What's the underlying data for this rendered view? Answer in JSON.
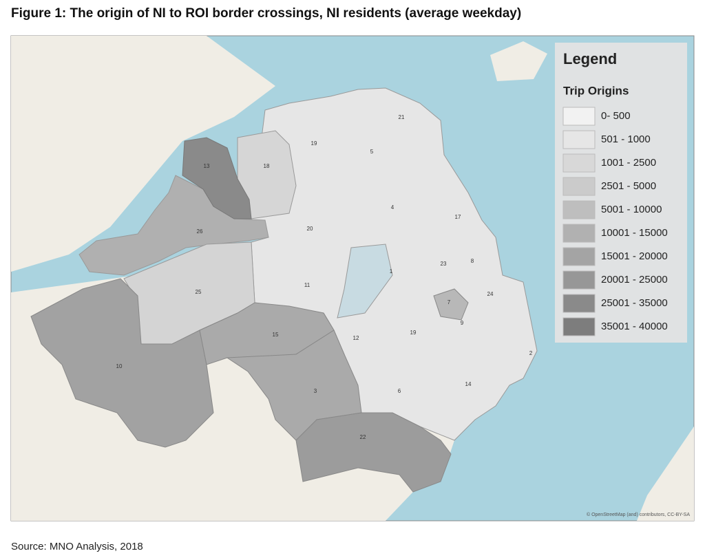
{
  "header": {
    "title": "Figure 1: The origin of NI to ROI border crossings, NI residents (average weekday)"
  },
  "map": {
    "legend": {
      "title": "Legend",
      "subtitle": "Trip Origins",
      "items": [
        {
          "label": "0- 500",
          "color": "#f2f2f2"
        },
        {
          "label": "501 - 1000",
          "color": "#e6e6e6"
        },
        {
          "label": "1001 - 2500",
          "color": "#d8d8d8"
        },
        {
          "label": "2501 - 5000",
          "color": "#cbcbcb"
        },
        {
          "label": "5001 - 10000",
          "color": "#bebebe"
        },
        {
          "label": "10001 - 15000",
          "color": "#b1b1b1"
        },
        {
          "label": "15001 - 20000",
          "color": "#a4a4a4"
        },
        {
          "label": "20001 - 25000",
          "color": "#979797"
        },
        {
          "label": "25001 - 35000",
          "color": "#8a8a8a"
        },
        {
          "label": "35001 - 40000",
          "color": "#7d7d7d"
        }
      ]
    },
    "region_labels": [
      "21",
      "19",
      "5",
      "13",
      "18",
      "4",
      "17",
      "26",
      "20",
      "1",
      "23",
      "8",
      "11",
      "25",
      "7",
      "24",
      "9",
      "15",
      "19",
      "12",
      "2",
      "10",
      "3",
      "6",
      "14",
      "22"
    ],
    "attribution": "© OpenStreetMap (and) contributors, CC-BY-SA"
  },
  "footer": {
    "source": "Source: MNO Analysis, 2018"
  }
}
